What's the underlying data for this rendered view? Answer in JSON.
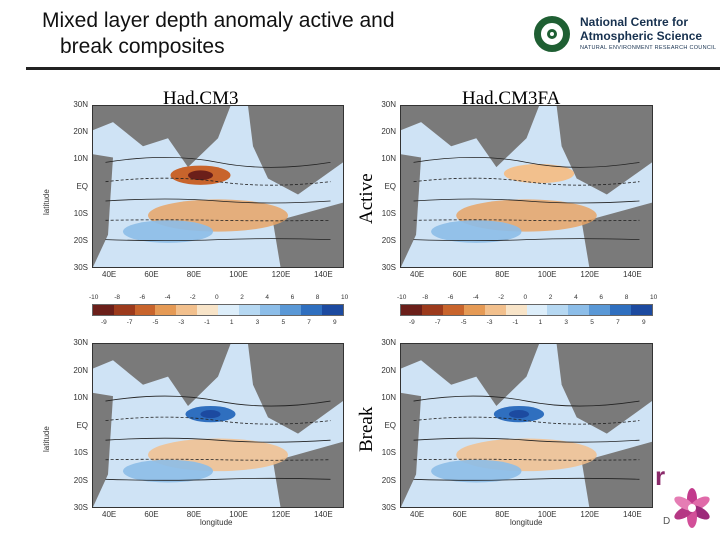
{
  "header": {
    "title_line1": "Mixed layer depth anomaly active and",
    "title_line2": "break composites"
  },
  "logo": {
    "line1": "National Centre for",
    "line2": "Atmospheric Science",
    "line3": "NATURAL ENVIRONMENT RESEARCH COUNCIL"
  },
  "models": {
    "left": "Had.CM3",
    "right": "Had.CM3FA"
  },
  "phases": {
    "active": "Active",
    "break": "Break"
  },
  "axes": {
    "lat_ticks": [
      "30N",
      "20N",
      "10N",
      "EQ",
      "10S",
      "20S",
      "30S"
    ],
    "lon_ticks": [
      "40E",
      "60E",
      "80E",
      "100E",
      "120E",
      "140E"
    ],
    "xlabel": "longitude",
    "ylabel": "latitude"
  },
  "colorbar": {
    "top_labels": [
      "-10",
      "-8",
      "-6",
      "-4",
      "-2",
      "0",
      "2",
      "4",
      "6",
      "8",
      "10"
    ],
    "bottom_labels": [
      "-9",
      "-7",
      "-5",
      "-3",
      "-1",
      "1",
      "3",
      "5",
      "7",
      "9"
    ],
    "colors": [
      "#6b1f1a",
      "#9c3a1c",
      "#c8642c",
      "#e59a55",
      "#f2c08d",
      "#f8e4c8",
      "#ddeefa",
      "#b6d8f2",
      "#8cbde8",
      "#5a98d6",
      "#2f6fbf",
      "#1c4aa0"
    ]
  },
  "partial_logo_text": "r",
  "partial_logo_text2": "D"
}
